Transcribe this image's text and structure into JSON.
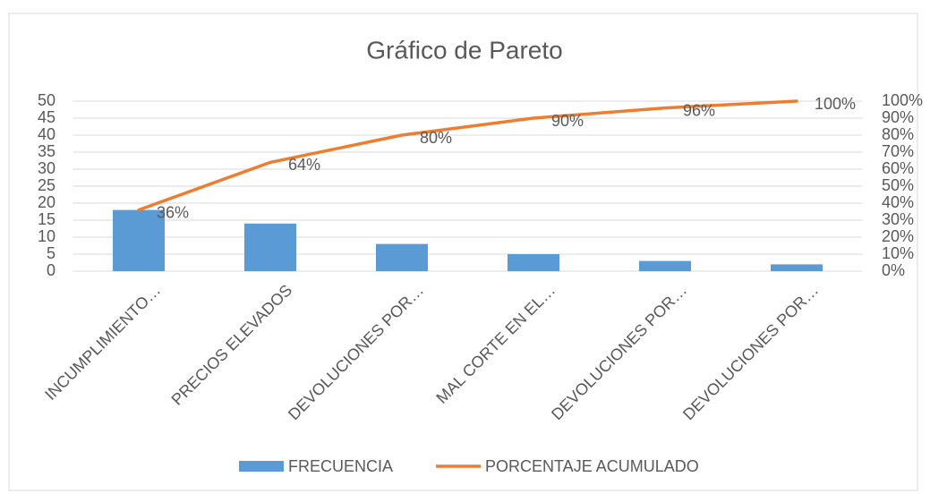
{
  "chart_data": {
    "type": "bar",
    "title": "Gráfico de Pareto",
    "categories": [
      "INCUMPLIMIENTO…",
      "PRECIOS ELEVADOS",
      "DEVOLUCIONES POR…",
      "MAL CORTE EN EL…",
      "DEVOLUCIONES POR…",
      "DEVOLUCIONES POR…"
    ],
    "series": [
      {
        "name": "FRECUENCIA",
        "type": "bar",
        "color": "#5b9bd5",
        "values": [
          18,
          14,
          8,
          5,
          3,
          2
        ]
      },
      {
        "name": "PORCENTAJE ACUMULADO",
        "type": "line",
        "axis": "y2",
        "color": "#ed7d31",
        "values": [
          36,
          64,
          80,
          90,
          96,
          100
        ],
        "value_labels": [
          "36%",
          "64%",
          "80%",
          "90%",
          "96%",
          "100%"
        ]
      }
    ],
    "ylim": [
      0,
      50
    ],
    "yticks": [
      0,
      5,
      10,
      15,
      20,
      25,
      30,
      35,
      40,
      45,
      50
    ],
    "y2lim": [
      0,
      100
    ],
    "y2ticks": [
      {
        "value": 0,
        "label": "0%"
      },
      {
        "value": 10,
        "label": "10%"
      },
      {
        "value": 20,
        "label": "20%"
      },
      {
        "value": 30,
        "label": "30%"
      },
      {
        "value": 40,
        "label": "40%"
      },
      {
        "value": 50,
        "label": "50%"
      },
      {
        "value": 60,
        "label": "60%"
      },
      {
        "value": 70,
        "label": "70%"
      },
      {
        "value": 80,
        "label": "80%"
      },
      {
        "value": 90,
        "label": "90%"
      },
      {
        "value": 100,
        "label": "100%"
      }
    ],
    "grid": true,
    "legend": "bottom"
  }
}
